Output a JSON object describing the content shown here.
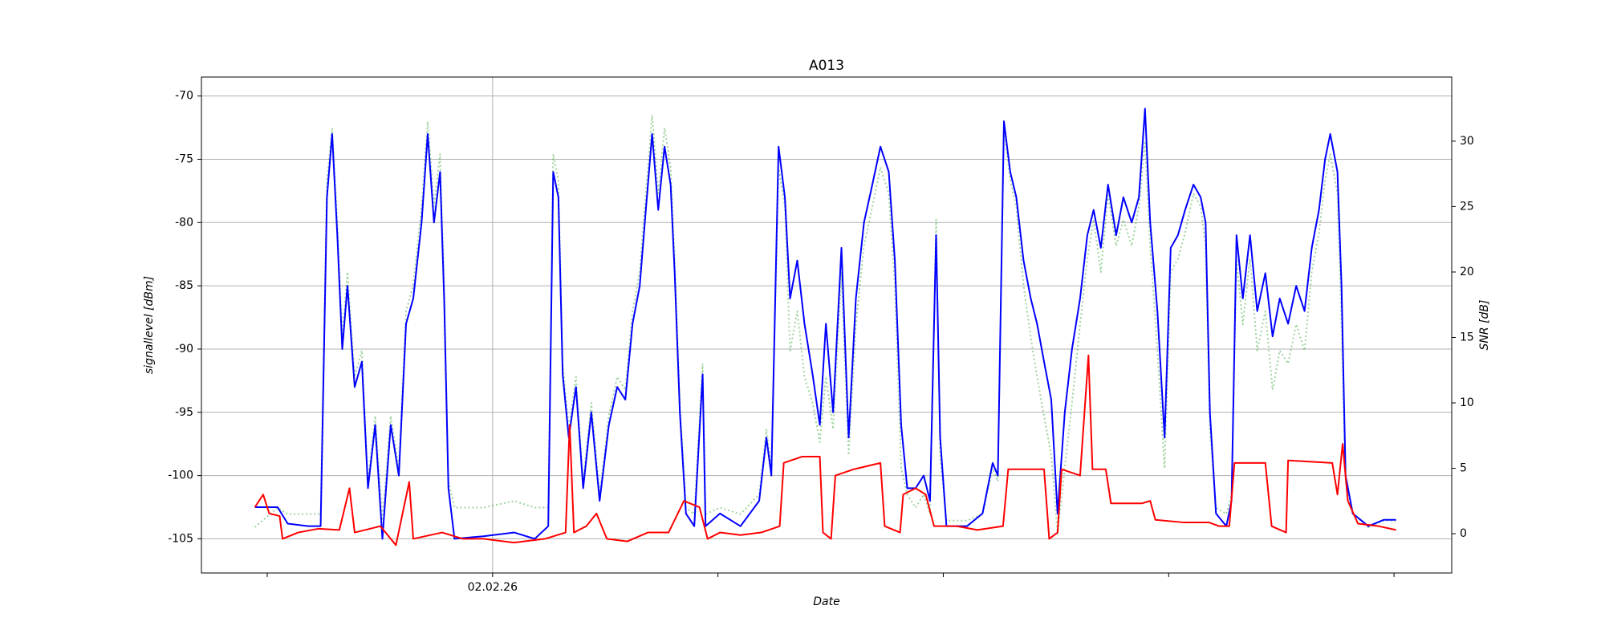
{
  "chart_data": {
    "type": "line",
    "title": "A013",
    "xlabel": "Date",
    "ylabel": "signallevel [dBm]",
    "y2label": "SNR [dB]",
    "xlim": [
      -0.292,
      5.256
    ],
    "xticks": [
      {
        "value": 0,
        "label": null
      },
      {
        "value": 1,
        "label": "02.02.26"
      },
      {
        "value": 2,
        "label": null
      },
      {
        "value": 3,
        "label": null
      },
      {
        "value": 4,
        "label": null
      },
      {
        "value": 5,
        "label": null
      }
    ],
    "ylim": [
      -107.7,
      -68.5
    ],
    "yticks": [
      -70,
      -75,
      -80,
      -85,
      -90,
      -95,
      -100,
      -105
    ],
    "y2lim": [
      -3,
      34.9
    ],
    "y2ticks": [
      0,
      5,
      10,
      15,
      20,
      25,
      30
    ],
    "grid": true,
    "series": [
      {
        "color": "#0000ff",
        "style": "solid",
        "x": [
          -0.055,
          0.046,
          0.091,
          0.183,
          0.237,
          0.265,
          0.288,
          0.311,
          0.333,
          0.356,
          0.388,
          0.42,
          0.447,
          0.479,
          0.511,
          0.548,
          0.584,
          0.616,
          0.648,
          0.685,
          0.712,
          0.74,
          0.767,
          0.785,
          0.804,
          0.831,
          0.959,
          1.096,
          1.187,
          1.247,
          1.269,
          1.292,
          1.311,
          1.338,
          1.37,
          1.402,
          1.438,
          1.475,
          1.516,
          1.553,
          1.589,
          1.621,
          1.653,
          1.68,
          1.708,
          1.735,
          1.763,
          1.79,
          1.808,
          1.831,
          1.858,
          1.895,
          1.932,
          1.945,
          2.009,
          2.1,
          2.183,
          2.215,
          2.237,
          2.269,
          2.297,
          2.32,
          2.352,
          2.384,
          2.42,
          2.452,
          2.479,
          2.511,
          2.548,
          2.58,
          2.612,
          2.648,
          2.685,
          2.721,
          2.758,
          2.785,
          2.813,
          2.84,
          2.877,
          2.913,
          2.941,
          2.968,
          2.986,
          3.014,
          3.105,
          3.174,
          3.219,
          3.242,
          3.269,
          3.297,
          3.324,
          3.356,
          3.388,
          3.416,
          3.447,
          3.479,
          3.507,
          3.539,
          3.571,
          3.607,
          3.639,
          3.667,
          3.699,
          3.731,
          3.767,
          3.799,
          3.836,
          3.868,
          3.895,
          3.918,
          3.95,
          3.982,
          4.009,
          4.041,
          4.073,
          4.11,
          4.142,
          4.164,
          4.183,
          4.21,
          4.256,
          4.279,
          4.301,
          4.329,
          4.361,
          4.393,
          4.429,
          4.461,
          4.493,
          4.53,
          4.566,
          4.603,
          4.635,
          4.667,
          4.694,
          4.717,
          4.749,
          4.767,
          4.785,
          4.817,
          4.886,
          4.954,
          5.009
        ],
        "values": [
          -102.5,
          -102.5,
          -103.8,
          -104,
          -104,
          -78,
          -73,
          -81,
          -90,
          -85,
          -93,
          -91,
          -101,
          -96,
          -105,
          -96,
          -100,
          -88,
          -86,
          -80,
          -73,
          -80,
          -76,
          -86,
          -101,
          -105,
          -104.8,
          -104.5,
          -105,
          -104,
          -76,
          -78,
          -92,
          -97,
          -93,
          -101,
          -95,
          -102,
          -96,
          -93,
          -94,
          -88,
          -85,
          -79,
          -73,
          -79,
          -74,
          -77,
          -84,
          -95,
          -103,
          -104,
          -92,
          -104,
          -103,
          -104,
          -102,
          -97,
          -100,
          -74,
          -78,
          -86,
          -83,
          -88,
          -92,
          -96,
          -88,
          -95,
          -82,
          -97,
          -86,
          -80,
          -77,
          -74,
          -76,
          -83,
          -96,
          -101,
          -101,
          -100,
          -102,
          -81,
          -97,
          -104,
          -104,
          -103,
          -99,
          -100,
          -72,
          -76,
          -78,
          -83,
          -86,
          -88,
          -91,
          -94,
          -103,
          -95,
          -90,
          -86,
          -81,
          -79,
          -82,
          -77,
          -81,
          -78,
          -80,
          -78,
          -71,
          -80,
          -87,
          -97,
          -82,
          -81,
          -79,
          -77,
          -78,
          -80,
          -95,
          -103,
          -104,
          -102,
          -81,
          -86,
          -81,
          -87,
          -84,
          -89,
          -86,
          -88,
          -85,
          -87,
          -82,
          -79,
          -75,
          -73,
          -76,
          -85,
          -100,
          -103,
          -104,
          -103.5,
          -103.5
        ]
      },
      {
        "color": "#ff0000",
        "style": "solid",
        "x": [
          -0.055,
          -0.018,
          0.009,
          0.055,
          0.068,
          0.137,
          0.228,
          0.32,
          0.365,
          0.388,
          0.502,
          0.571,
          0.63,
          0.648,
          0.776,
          0.868,
          0.959,
          1.096,
          1.233,
          1.324,
          1.342,
          1.361,
          1.416,
          1.461,
          1.507,
          1.598,
          1.689,
          1.781,
          1.849,
          1.918,
          1.954,
          2.009,
          2.1,
          2.192,
          2.274,
          2.292,
          2.374,
          2.452,
          2.466,
          2.502,
          2.521,
          2.603,
          2.721,
          2.74,
          2.808,
          2.822,
          2.877,
          2.922,
          2.959,
          3.059,
          3.151,
          3.265,
          3.288,
          3.447,
          3.47,
          3.507,
          3.525,
          3.607,
          3.644,
          3.662,
          3.721,
          3.744,
          3.881,
          3.918,
          3.941,
          4.064,
          4.178,
          4.224,
          4.269,
          4.292,
          4.429,
          4.457,
          4.521,
          4.53,
          4.726,
          4.749,
          4.772,
          4.795,
          4.84,
          4.932,
          5.009
        ],
        "values": [
          -102.5,
          -101.5,
          -103,
          -103.2,
          -105,
          -104.5,
          -104.2,
          -104.3,
          -101,
          -104.5,
          -104,
          -105.5,
          -100.5,
          -105,
          -104.5,
          -105,
          -105,
          -105.3,
          -105,
          -104.5,
          -96,
          -104.5,
          -104,
          -103,
          -105,
          -105.2,
          -104.5,
          -104.5,
          -102,
          -102.5,
          -105,
          -104.5,
          -104.7,
          -104.5,
          -104,
          -99,
          -98.5,
          -98.5,
          -104.5,
          -105,
          -100,
          -99.5,
          -99,
          -104,
          -104.5,
          -101.5,
          -101,
          -101.5,
          -104,
          -104,
          -104.3,
          -104,
          -99.5,
          -99.5,
          -105,
          -104.5,
          -99.5,
          -100,
          -90.5,
          -99.5,
          -99.5,
          -102.2,
          -102.2,
          -102,
          -103.5,
          -103.7,
          -103.7,
          -104,
          -104,
          -99,
          -99,
          -104,
          -104.5,
          -98.8,
          -99,
          -101.5,
          -97.5,
          -102,
          -103.8,
          -104,
          -104.3
        ]
      },
      {
        "color": "#2ca02c",
        "style": "dotted",
        "axis": "y2",
        "x": [
          -0.055,
          0.046,
          0.091,
          0.183,
          0.237,
          0.265,
          0.288,
          0.311,
          0.333,
          0.356,
          0.388,
          0.42,
          0.447,
          0.479,
          0.511,
          0.548,
          0.584,
          0.616,
          0.648,
          0.685,
          0.712,
          0.74,
          0.767,
          0.785,
          0.804,
          0.831,
          0.959,
          1.096,
          1.187,
          1.247,
          1.269,
          1.292,
          1.311,
          1.338,
          1.37,
          1.402,
          1.438,
          1.475,
          1.516,
          1.553,
          1.589,
          1.621,
          1.653,
          1.68,
          1.708,
          1.735,
          1.763,
          1.79,
          1.808,
          1.831,
          1.858,
          1.895,
          1.932,
          1.945,
          2.009,
          2.1,
          2.183,
          2.215,
          2.237,
          2.269,
          2.297,
          2.32,
          2.352,
          2.384,
          2.42,
          2.452,
          2.479,
          2.511,
          2.548,
          2.58,
          2.612,
          2.648,
          2.685,
          2.721,
          2.758,
          2.785,
          2.813,
          2.84,
          2.877,
          2.913,
          2.941,
          2.968,
          2.986,
          3.014,
          3.105,
          3.174,
          3.219,
          3.242,
          3.269,
          3.297,
          3.324,
          3.356,
          3.388,
          3.416,
          3.447,
          3.479,
          3.507,
          3.539,
          3.571,
          3.607,
          3.639,
          3.667,
          3.699,
          3.731,
          3.767,
          3.799,
          3.836,
          3.868,
          3.895,
          3.918,
          3.95,
          3.982,
          4.009,
          4.041,
          4.073,
          4.11,
          4.142,
          4.164,
          4.183,
          4.21,
          4.256,
          4.279,
          4.301,
          4.329,
          4.361,
          4.393,
          4.429,
          4.461,
          4.493,
          4.53,
          4.566,
          4.603,
          4.635,
          4.667,
          4.694,
          4.717,
          4.749,
          4.767,
          4.785,
          4.817,
          4.886,
          4.954,
          5.009
        ],
        "values": [
          0.5,
          2,
          1.5,
          1.5,
          1.5,
          27,
          31,
          24,
          15,
          20,
          12,
          14,
          4,
          9,
          1,
          9,
          5,
          17,
          19,
          25,
          31.5,
          25,
          29,
          19,
          4,
          2,
          2,
          2.5,
          2,
          2,
          29,
          27,
          13,
          8,
          12,
          4,
          10,
          3,
          9,
          12,
          11,
          17,
          20,
          26,
          32,
          26,
          31,
          28,
          21,
          10,
          2,
          1.5,
          13,
          1.5,
          2,
          1.5,
          3,
          8,
          5,
          28,
          25,
          14,
          17,
          12,
          10,
          7,
          12,
          8,
          20,
          6,
          16,
          22,
          25,
          28,
          26,
          19,
          5,
          3,
          2,
          3,
          1.5,
          24,
          6,
          1,
          1,
          1.5,
          5,
          4,
          31,
          27,
          25,
          19,
          15,
          12,
          9,
          6,
          0,
          5,
          10,
          16,
          21,
          24,
          20,
          26,
          22,
          24,
          22,
          25,
          30,
          22,
          14,
          5,
          20,
          21,
          23,
          26,
          25,
          22,
          8,
          2,
          1.5,
          3,
          21,
          16,
          21,
          14,
          17,
          11,
          14,
          13,
          16,
          14,
          20,
          23,
          27,
          29,
          26,
          16,
          4,
          1.5,
          0.5,
          1,
          1
        ]
      }
    ]
  }
}
